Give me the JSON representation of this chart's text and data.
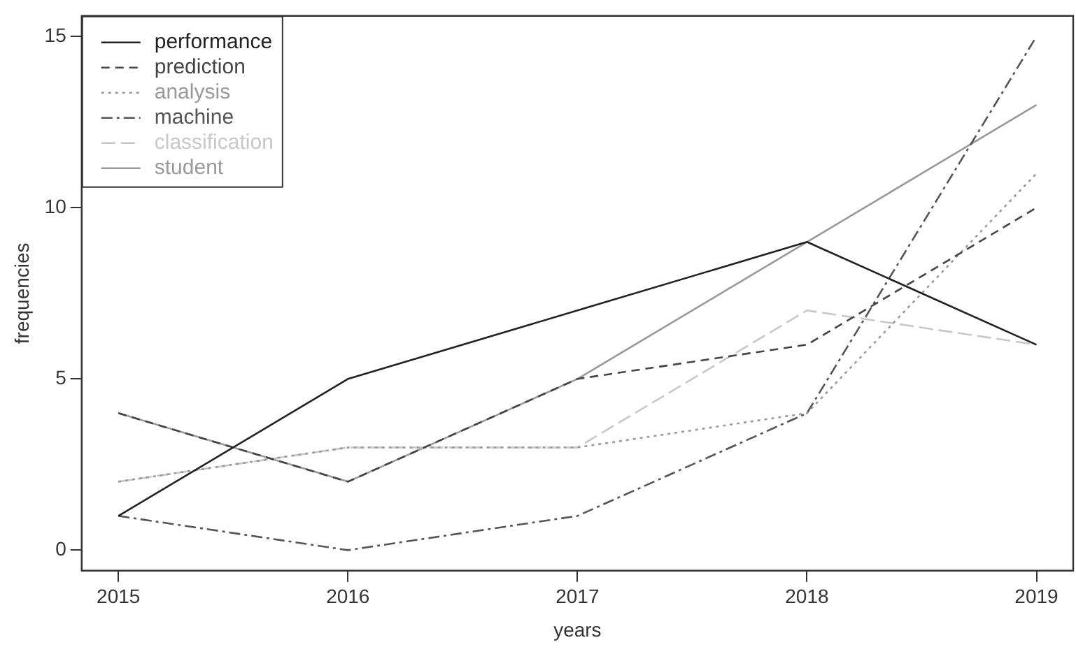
{
  "chart_data": {
    "type": "line",
    "xlabel": "years",
    "ylabel": "frequencies",
    "x": [
      2015,
      2016,
      2017,
      2018,
      2019
    ],
    "xlim": [
      2014.84,
      2019.16
    ],
    "xticks": [
      2015,
      2016,
      2017,
      2018,
      2019
    ],
    "ylim": [
      -0.6,
      15.6
    ],
    "yticks": [
      0,
      5,
      10,
      15
    ],
    "grid": false,
    "legend": "top left",
    "marker": "none",
    "series": [
      {
        "name": "performance",
        "color": "#222222",
        "line_style": "solid",
        "values": [
          1,
          5,
          7,
          9,
          6
        ]
      },
      {
        "name": "prediction",
        "color": "#444444",
        "line_style": "dashed",
        "values": [
          4,
          2,
          5,
          6,
          10
        ]
      },
      {
        "name": "analysis",
        "color": "#999999",
        "line_style": "dotted",
        "values": [
          2,
          3,
          3,
          4,
          11
        ]
      },
      {
        "name": "machine",
        "color": "#555555",
        "line_style": "dashed",
        "values": [
          1,
          0,
          1,
          4,
          15
        ]
      },
      {
        "name": "classification",
        "color": "#c8c8c8",
        "line_style": "dashed",
        "values": [
          2,
          3,
          3,
          7,
          6
        ]
      },
      {
        "name": "student",
        "color": "#999999",
        "line_style": "solid",
        "values": [
          4,
          2,
          5,
          9,
          13
        ]
      }
    ]
  }
}
